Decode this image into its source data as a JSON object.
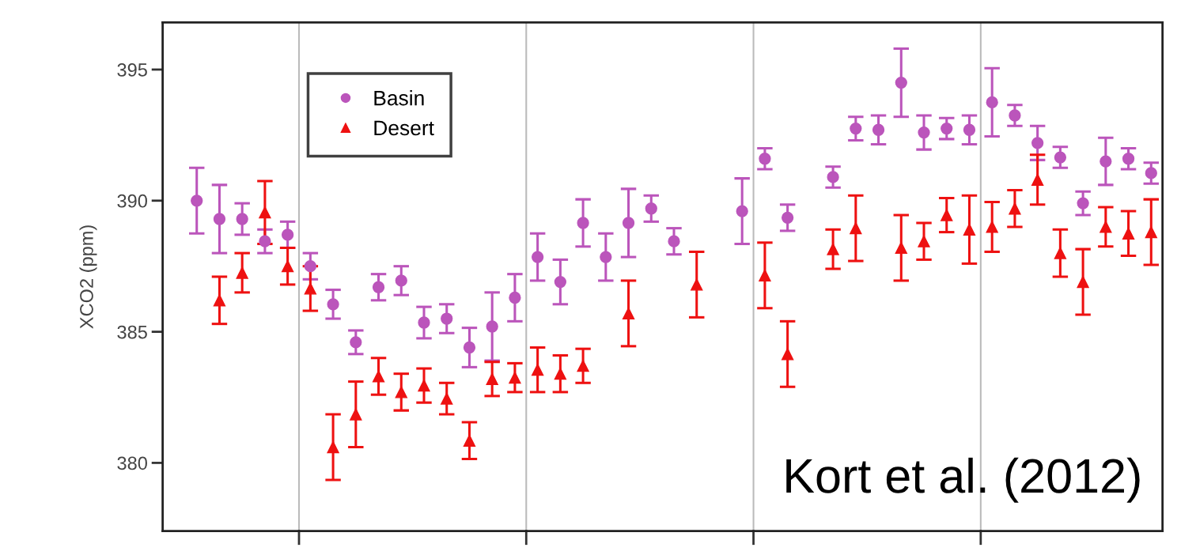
{
  "chart_data": {
    "type": "scatter",
    "ylabel": "XCO2 (ppm)",
    "categories": [
      null,
      null,
      null,
      null,
      null,
      null,
      null,
      null,
      null,
      null,
      null,
      null,
      null,
      null,
      null,
      null,
      null,
      null,
      null,
      null,
      null,
      null,
      null,
      null,
      null,
      null,
      null,
      null,
      null,
      null,
      null,
      null,
      null,
      null,
      null,
      null,
      null,
      null,
      null,
      null,
      null,
      null,
      null,
      null
    ],
    "ylim": [
      377.4,
      396.8
    ],
    "yticks": [
      380,
      385,
      390,
      395
    ],
    "legend": "top left",
    "series": [
      {
        "name": "Basin",
        "color": "#bb55bb",
        "marker": "circle",
        "values": [
          null,
          390.0,
          389.3,
          389.3,
          388.45,
          388.7,
          387.5,
          386.05,
          384.6,
          386.7,
          386.95,
          385.35,
          385.5,
          384.4,
          385.2,
          386.3,
          387.85,
          386.9,
          389.15,
          387.85,
          389.15,
          389.7,
          388.45,
          null,
          null,
          389.6,
          391.6,
          389.35,
          null,
          390.9,
          392.75,
          392.7,
          394.5,
          392.6,
          392.75,
          392.7,
          393.75,
          393.25,
          392.2,
          391.65,
          389.9,
          391.5,
          391.6,
          391.05
        ],
        "errors": [
          null,
          1.25,
          1.3,
          0.6,
          0.45,
          0.5,
          0.5,
          0.55,
          0.45,
          0.5,
          0.55,
          0.6,
          0.55,
          0.75,
          1.3,
          0.9,
          0.9,
          0.85,
          0.9,
          0.9,
          1.3,
          0.5,
          0.5,
          null,
          null,
          1.25,
          0.4,
          0.5,
          null,
          0.4,
          0.45,
          0.55,
          1.3,
          0.65,
          0.4,
          0.55,
          1.3,
          0.4,
          0.65,
          0.4,
          0.45,
          0.9,
          0.4,
          0.4
        ]
      },
      {
        "name": "Desert",
        "color": "#ee1111",
        "marker": "triangle",
        "values": [
          null,
          null,
          386.2,
          387.25,
          389.55,
          387.5,
          386.65,
          380.6,
          381.85,
          383.3,
          382.7,
          382.95,
          382.45,
          380.85,
          383.2,
          383.25,
          383.55,
          383.4,
          383.7,
          null,
          385.7,
          null,
          null,
          386.8,
          null,
          null,
          387.15,
          384.15,
          null,
          388.15,
          388.95,
          null,
          388.2,
          388.45,
          389.45,
          388.9,
          389.0,
          389.7,
          390.8,
          388.0,
          386.9,
          389.0,
          388.75,
          388.8
        ],
        "errors": [
          null,
          null,
          0.9,
          0.75,
          1.2,
          0.7,
          0.85,
          1.25,
          1.25,
          0.7,
          0.7,
          0.65,
          0.6,
          0.7,
          0.65,
          0.55,
          0.85,
          0.7,
          0.65,
          null,
          1.25,
          null,
          null,
          1.25,
          null,
          null,
          1.25,
          1.25,
          null,
          0.75,
          1.25,
          null,
          1.25,
          0.7,
          0.65,
          1.3,
          0.95,
          0.7,
          0.95,
          0.9,
          1.25,
          0.75,
          0.85,
          1.25
        ]
      }
    ],
    "annotations": [
      "Kort et al. (2012)"
    ]
  }
}
